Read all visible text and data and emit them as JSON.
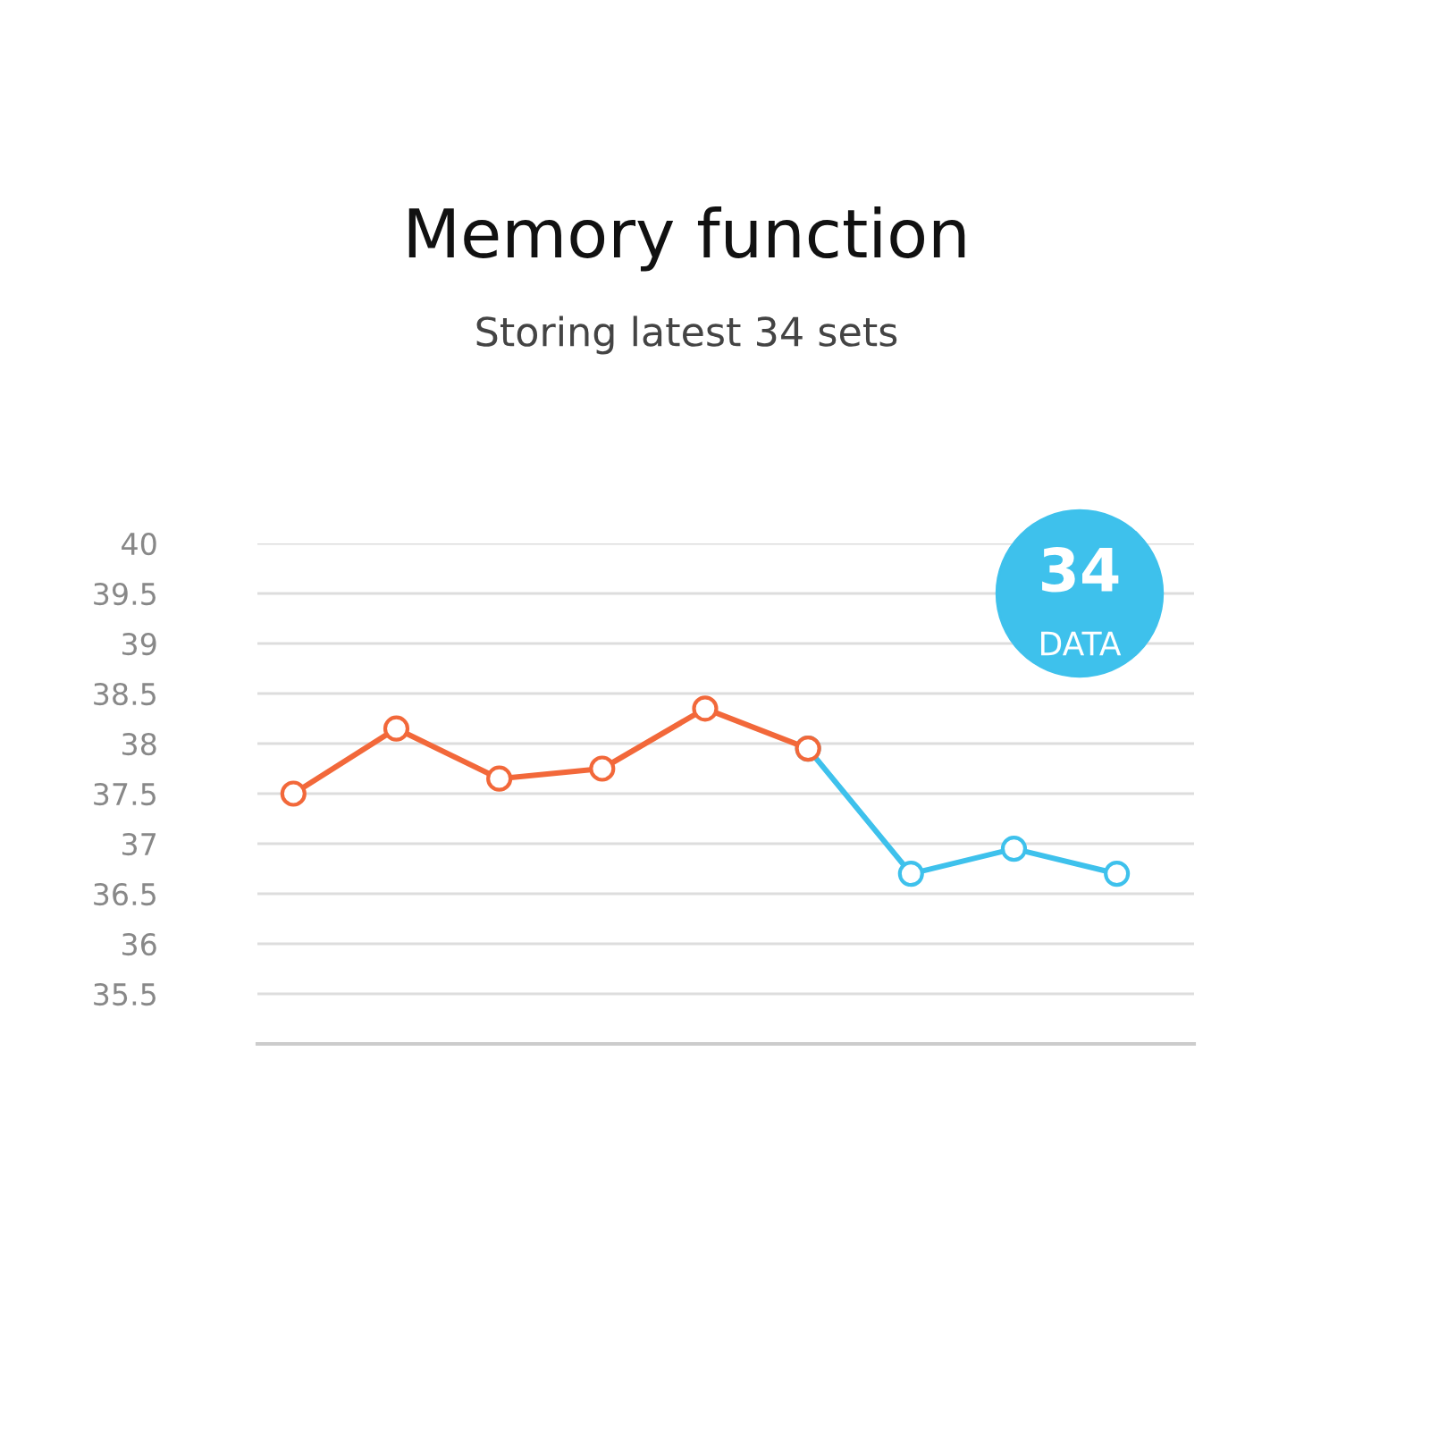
{
  "chart_data": {
    "type": "line",
    "title": "Memory function",
    "subtitle": "Storing latest 34 sets",
    "categories": [
      null,
      null,
      null,
      null,
      null,
      null,
      null,
      null,
      null
    ],
    "series": [
      {
        "color": "#f2683a",
        "values": [
          37.5,
          38.15,
          37.65,
          37.75,
          38.35,
          37.95,
          null,
          null,
          null
        ]
      },
      {
        "color": "#3ec1ec",
        "values": [
          null,
          null,
          null,
          null,
          null,
          37.95,
          36.7,
          36.95,
          36.7
        ]
      }
    ],
    "ylim": [
      35,
      40
    ],
    "yticks": [
      35.5,
      36,
      36.5,
      37,
      37.5,
      38,
      38.5,
      39,
      39.5,
      40
    ],
    "grid": "y",
    "marker": "circle",
    "line_style": "solid",
    "annotations": [
      "34",
      "DATA"
    ]
  }
}
